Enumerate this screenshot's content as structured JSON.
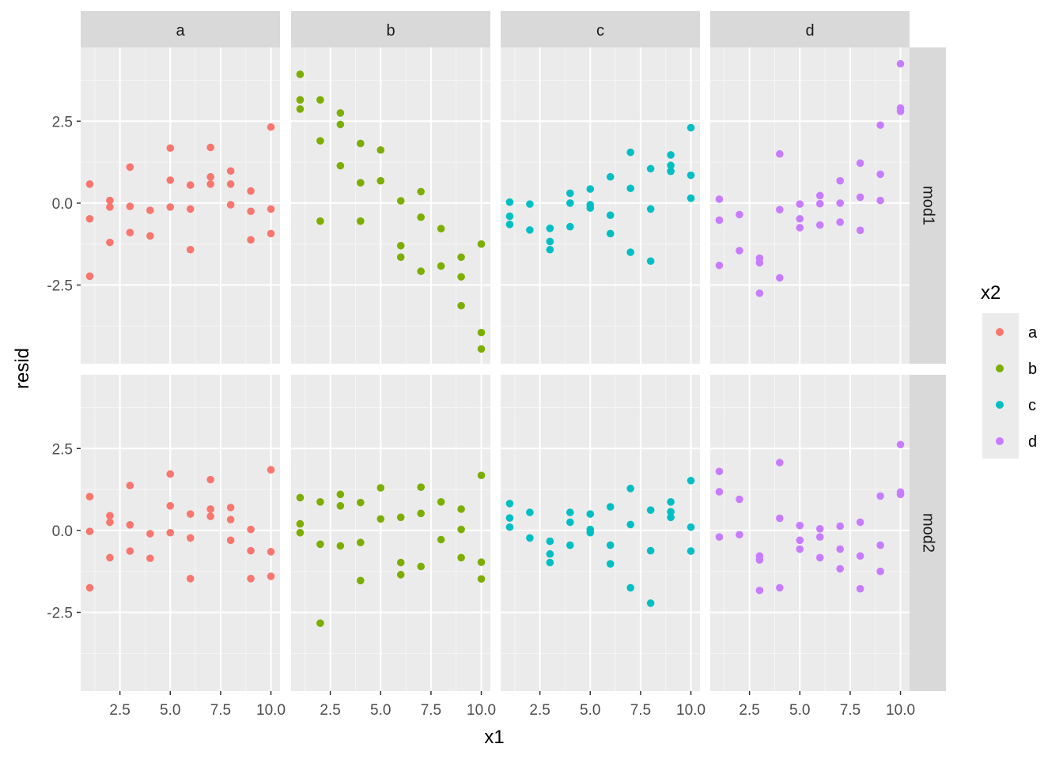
{
  "chart_data": {
    "type": "scatter",
    "xlabel": "x1",
    "ylabel": "resid",
    "xlim": [
      0.55,
      10.45
    ],
    "ylim": [
      -4.9,
      4.75
    ],
    "x_ticks": [
      2.5,
      5.0,
      7.5,
      10.0
    ],
    "x_tick_labels": [
      "2.5",
      "5.0",
      "7.5",
      "10.0"
    ],
    "y_ticks": [
      -2.5,
      0.0,
      2.5
    ],
    "y_tick_labels": [
      "-2.5",
      "0.0",
      "2.5"
    ],
    "grid": true,
    "facet_cols": [
      "a",
      "b",
      "c",
      "d"
    ],
    "facet_rows": [
      "mod1",
      "mod2"
    ],
    "legend": {
      "title": "x2",
      "position": "right",
      "entries": [
        {
          "label": "a",
          "color": "#F8766D"
        },
        {
          "label": "b",
          "color": "#7CAE00"
        },
        {
          "label": "c",
          "color": "#00BFC4"
        },
        {
          "label": "d",
          "color": "#C77CFF"
        }
      ]
    },
    "panels": {
      "mod1": {
        "a": [
          [
            1,
            0.58
          ],
          [
            1,
            -0.48
          ],
          [
            1,
            -2.23
          ],
          [
            2,
            0.08
          ],
          [
            2,
            -0.12
          ],
          [
            2,
            -1.2
          ],
          [
            3,
            1.1
          ],
          [
            3,
            -0.1
          ],
          [
            3,
            -0.9
          ],
          [
            4,
            -0.22
          ],
          [
            4,
            -1.0
          ],
          [
            5,
            1.68
          ],
          [
            5,
            0.7
          ],
          [
            5,
            -0.12
          ],
          [
            6,
            0.55
          ],
          [
            6,
            -0.18
          ],
          [
            6,
            -1.42
          ],
          [
            7,
            1.7
          ],
          [
            7,
            0.8
          ],
          [
            7,
            0.58
          ],
          [
            8,
            0.98
          ],
          [
            8,
            0.58
          ],
          [
            8,
            -0.05
          ],
          [
            9,
            0.37
          ],
          [
            9,
            -0.25
          ],
          [
            9,
            -1.12
          ],
          [
            10,
            2.32
          ],
          [
            10,
            -0.18
          ],
          [
            10,
            -0.93
          ]
        ],
        "b": [
          [
            1,
            3.93
          ],
          [
            1,
            3.15
          ],
          [
            1,
            2.87
          ],
          [
            2,
            3.15
          ],
          [
            2,
            1.9
          ],
          [
            2,
            -0.55
          ],
          [
            3,
            2.75
          ],
          [
            3,
            2.4
          ],
          [
            3,
            1.14
          ],
          [
            4,
            1.82
          ],
          [
            4,
            0.62
          ],
          [
            4,
            -0.55
          ],
          [
            5,
            1.62
          ],
          [
            5,
            0.68
          ],
          [
            6,
            0.07
          ],
          [
            6,
            -1.3
          ],
          [
            6,
            -1.65
          ],
          [
            7,
            0.35
          ],
          [
            7,
            -0.43
          ],
          [
            7,
            -2.08
          ],
          [
            8,
            -0.78
          ],
          [
            8,
            -1.92
          ],
          [
            9,
            -1.65
          ],
          [
            9,
            -2.25
          ],
          [
            9,
            -3.13
          ],
          [
            10,
            -1.25
          ],
          [
            10,
            -3.95
          ],
          [
            10,
            -4.45
          ]
        ],
        "c": [
          [
            1,
            0.03
          ],
          [
            1,
            -0.4
          ],
          [
            1,
            -0.65
          ],
          [
            2,
            -0.03
          ],
          [
            2,
            -0.82
          ],
          [
            3,
            -0.77
          ],
          [
            3,
            -1.17
          ],
          [
            3,
            -1.42
          ],
          [
            4,
            0.3
          ],
          [
            4,
            0.0
          ],
          [
            4,
            -0.72
          ],
          [
            5,
            0.43
          ],
          [
            5,
            -0.05
          ],
          [
            5,
            -0.15
          ],
          [
            6,
            0.8
          ],
          [
            6,
            -0.37
          ],
          [
            6,
            -0.93
          ],
          [
            7,
            1.55
          ],
          [
            7,
            0.45
          ],
          [
            7,
            -1.5
          ],
          [
            8,
            1.05
          ],
          [
            8,
            -0.18
          ],
          [
            8,
            -1.77
          ],
          [
            9,
            1.47
          ],
          [
            9,
            1.15
          ],
          [
            9,
            0.97
          ],
          [
            10,
            2.3
          ],
          [
            10,
            0.85
          ],
          [
            10,
            0.15
          ]
        ],
        "d": [
          [
            1,
            0.12
          ],
          [
            1,
            -0.52
          ],
          [
            1,
            -1.9
          ],
          [
            2,
            -0.35
          ],
          [
            2,
            -1.45
          ],
          [
            3,
            -1.68
          ],
          [
            3,
            -1.82
          ],
          [
            3,
            -2.75
          ],
          [
            4,
            1.5
          ],
          [
            4,
            -0.2
          ],
          [
            4,
            -2.28
          ],
          [
            5,
            -0.03
          ],
          [
            5,
            -0.48
          ],
          [
            5,
            -0.75
          ],
          [
            6,
            0.23
          ],
          [
            6,
            -0.02
          ],
          [
            6,
            -0.67
          ],
          [
            7,
            0.68
          ],
          [
            7,
            0.0
          ],
          [
            7,
            -0.58
          ],
          [
            8,
            1.22
          ],
          [
            8,
            0.18
          ],
          [
            8,
            -0.83
          ],
          [
            9,
            2.38
          ],
          [
            9,
            0.88
          ],
          [
            9,
            0.08
          ],
          [
            10,
            4.25
          ],
          [
            10,
            2.9
          ],
          [
            10,
            2.8
          ]
        ]
      },
      "mod2": {
        "a": [
          [
            1,
            1.03
          ],
          [
            1,
            -0.03
          ],
          [
            1,
            -1.75
          ],
          [
            2,
            0.45
          ],
          [
            2,
            0.25
          ],
          [
            2,
            -0.83
          ],
          [
            3,
            1.37
          ],
          [
            3,
            0.17
          ],
          [
            3,
            -0.63
          ],
          [
            4,
            -0.1
          ],
          [
            4,
            -0.85
          ],
          [
            5,
            1.72
          ],
          [
            5,
            0.75
          ],
          [
            5,
            -0.07
          ],
          [
            6,
            0.5
          ],
          [
            6,
            -0.23
          ],
          [
            6,
            -1.47
          ],
          [
            7,
            1.55
          ],
          [
            7,
            0.65
          ],
          [
            7,
            0.43
          ],
          [
            8,
            0.7
          ],
          [
            8,
            0.33
          ],
          [
            8,
            -0.3
          ],
          [
            9,
            0.03
          ],
          [
            9,
            -0.62
          ],
          [
            9,
            -1.47
          ],
          [
            10,
            1.85
          ],
          [
            10,
            -0.65
          ],
          [
            10,
            -1.4
          ]
        ],
        "b": [
          [
            1,
            1.0
          ],
          [
            1,
            0.2
          ],
          [
            1,
            -0.07
          ],
          [
            2,
            0.87
          ],
          [
            2,
            -0.42
          ],
          [
            2,
            -2.83
          ],
          [
            3,
            1.1
          ],
          [
            3,
            0.75
          ],
          [
            3,
            -0.47
          ],
          [
            4,
            0.85
          ],
          [
            4,
            -0.37
          ],
          [
            4,
            -1.53
          ],
          [
            5,
            1.3
          ],
          [
            5,
            0.35
          ],
          [
            6,
            0.4
          ],
          [
            6,
            -0.98
          ],
          [
            6,
            -1.35
          ],
          [
            7,
            1.32
          ],
          [
            7,
            0.52
          ],
          [
            7,
            -1.1
          ],
          [
            8,
            0.87
          ],
          [
            8,
            -0.28
          ],
          [
            9,
            0.65
          ],
          [
            9,
            0.03
          ],
          [
            9,
            -0.83
          ],
          [
            10,
            1.68
          ],
          [
            10,
            -0.97
          ],
          [
            10,
            -1.48
          ]
        ],
        "c": [
          [
            1,
            0.82
          ],
          [
            1,
            0.38
          ],
          [
            1,
            0.1
          ],
          [
            2,
            0.55
          ],
          [
            2,
            -0.23
          ],
          [
            3,
            -0.33
          ],
          [
            3,
            -0.72
          ],
          [
            3,
            -0.98
          ],
          [
            4,
            0.55
          ],
          [
            4,
            0.25
          ],
          [
            4,
            -0.45
          ],
          [
            5,
            0.5
          ],
          [
            5,
            0.03
          ],
          [
            5,
            -0.07
          ],
          [
            6,
            0.72
          ],
          [
            6,
            -0.45
          ],
          [
            6,
            -1.02
          ],
          [
            7,
            1.28
          ],
          [
            7,
            0.18
          ],
          [
            7,
            -1.75
          ],
          [
            8,
            0.62
          ],
          [
            8,
            -0.62
          ],
          [
            8,
            -2.22
          ],
          [
            9,
            0.87
          ],
          [
            9,
            0.57
          ],
          [
            9,
            0.4
          ],
          [
            10,
            1.52
          ],
          [
            10,
            0.1
          ],
          [
            10,
            -0.63
          ]
        ],
        "d": [
          [
            1,
            1.8
          ],
          [
            1,
            1.18
          ],
          [
            1,
            -0.2
          ],
          [
            2,
            0.95
          ],
          [
            2,
            -0.13
          ],
          [
            3,
            -0.78
          ],
          [
            3,
            -0.9
          ],
          [
            3,
            -1.83
          ],
          [
            4,
            2.07
          ],
          [
            4,
            0.37
          ],
          [
            4,
            -1.75
          ],
          [
            5,
            0.15
          ],
          [
            5,
            -0.3
          ],
          [
            5,
            -0.57
          ],
          [
            6,
            0.05
          ],
          [
            6,
            -0.2
          ],
          [
            6,
            -0.83
          ],
          [
            7,
            0.13
          ],
          [
            7,
            -0.57
          ],
          [
            7,
            -1.17
          ],
          [
            8,
            0.25
          ],
          [
            8,
            -0.78
          ],
          [
            8,
            -1.78
          ],
          [
            9,
            1.05
          ],
          [
            9,
            -0.45
          ],
          [
            9,
            -1.25
          ],
          [
            10,
            2.62
          ],
          [
            10,
            1.17
          ],
          [
            10,
            1.1
          ]
        ]
      }
    }
  }
}
